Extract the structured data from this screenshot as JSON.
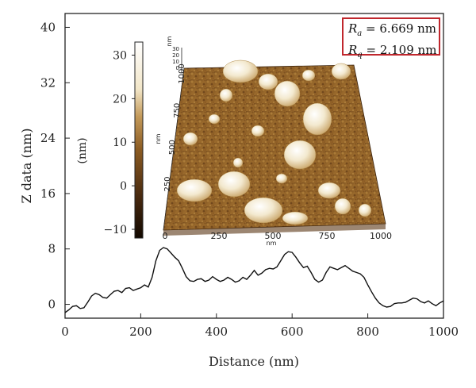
{
  "chart_data": {
    "type": "line",
    "xlabel": "Distance (nm)",
    "ylabel": "Z data (nm)",
    "xlim": [
      0,
      1000
    ],
    "ylim": [
      -2,
      42
    ],
    "x_ticks": [
      "0",
      "200",
      "400",
      "600",
      "800",
      "1000"
    ],
    "y_ticks": [
      "0",
      "8",
      "16",
      "24",
      "32",
      "40"
    ],
    "series": [
      {
        "x": [
          0,
          10,
          20,
          30,
          40,
          50,
          60,
          70,
          80,
          90,
          100,
          110,
          120,
          130,
          140,
          150,
          160,
          170,
          180,
          190,
          200,
          210,
          220,
          230,
          240,
          250,
          260,
          270,
          280,
          290,
          300,
          310,
          320,
          330,
          340,
          350,
          360,
          370,
          380,
          390,
          400,
          410,
          420,
          430,
          440,
          450,
          460,
          470,
          480,
          490,
          500,
          510,
          520,
          530,
          540,
          550,
          560,
          570,
          580,
          590,
          600,
          610,
          620,
          630,
          640,
          650,
          660,
          670,
          680,
          690,
          700,
          710,
          720,
          730,
          740,
          750,
          760,
          770,
          780,
          790,
          800,
          810,
          820,
          830,
          840,
          850,
          860,
          870,
          880,
          890,
          900,
          910,
          920,
          930,
          940,
          950,
          960,
          970,
          980,
          990,
          1000
        ],
        "y": [
          -1.2,
          -0.8,
          -0.3,
          -0.2,
          -0.6,
          -0.5,
          0.3,
          1.2,
          1.6,
          1.4,
          1.0,
          0.9,
          1.4,
          1.9,
          2.0,
          1.7,
          2.3,
          2.4,
          2.0,
          2.2,
          2.4,
          2.8,
          2.5,
          3.9,
          6.3,
          7.8,
          8.2,
          8.0,
          7.4,
          6.8,
          6.3,
          5.2,
          4.0,
          3.4,
          3.3,
          3.6,
          3.7,
          3.3,
          3.5,
          4.0,
          3.6,
          3.3,
          3.5,
          3.9,
          3.6,
          3.2,
          3.4,
          3.9,
          3.6,
          4.2,
          4.9,
          4.2,
          4.5,
          5.0,
          5.2,
          5.1,
          5.4,
          6.3,
          7.2,
          7.6,
          7.5,
          6.8,
          6.0,
          5.3,
          5.5,
          4.6,
          3.6,
          3.2,
          3.5,
          4.6,
          5.4,
          5.2,
          5.0,
          5.3,
          5.6,
          5.2,
          4.8,
          4.6,
          4.4,
          3.9,
          2.8,
          1.8,
          0.9,
          0.2,
          -0.2,
          -0.4,
          -0.3,
          0.1,
          0.2,
          0.2,
          0.3,
          0.6,
          0.9,
          0.8,
          0.4,
          0.2,
          0.5,
          0.1,
          -0.2,
          0.2,
          0.5
        ]
      }
    ],
    "inset": {
      "colorbar_label": "(nm)",
      "colorbar_ticks": [
        "30",
        "20",
        "10",
        "0",
        "−10"
      ],
      "colorbar_range": [
        -12,
        33
      ],
      "axis_unit": "nm",
      "x_ticks": [
        "0",
        "250",
        "500",
        "750",
        "1000"
      ],
      "y_ticks": [
        "250",
        "500",
        "750",
        "1000"
      ],
      "z_ticks": [
        "30",
        "20",
        "10",
        "0"
      ]
    },
    "annotation": {
      "ra_label": "R",
      "ra_sub": "a",
      "ra_value": "= 6.669 nm",
      "rq_label": "R",
      "rq_sub": "q",
      "rq_value": "= 2.109 nm"
    }
  },
  "colors": {
    "line": "#111111",
    "annotation_border": "#c0272d",
    "surface_dark": "#4a2b10",
    "surface_mid": "#9a6a2c",
    "surface_light": "#f4ead0"
  }
}
